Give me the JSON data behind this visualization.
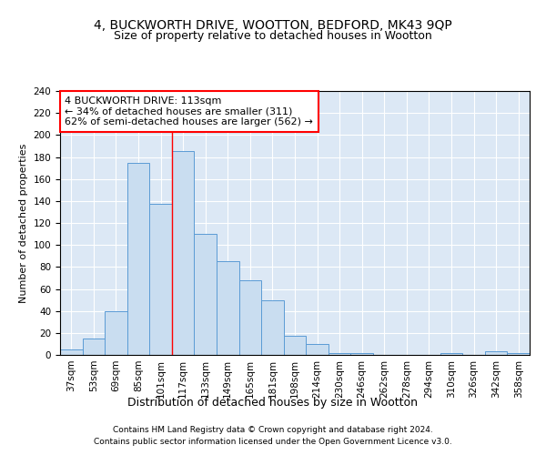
{
  "title1": "4, BUCKWORTH DRIVE, WOOTTON, BEDFORD, MK43 9QP",
  "title2": "Size of property relative to detached houses in Wootton",
  "xlabel": "Distribution of detached houses by size in Wootton",
  "ylabel": "Number of detached properties",
  "categories": [
    "37sqm",
    "53sqm",
    "69sqm",
    "85sqm",
    "101sqm",
    "117sqm",
    "133sqm",
    "149sqm",
    "165sqm",
    "181sqm",
    "198sqm",
    "214sqm",
    "230sqm",
    "246sqm",
    "262sqm",
    "278sqm",
    "294sqm",
    "310sqm",
    "326sqm",
    "342sqm",
    "358sqm"
  ],
  "values": [
    5,
    15,
    40,
    175,
    137,
    185,
    110,
    85,
    68,
    50,
    17,
    10,
    2,
    2,
    0,
    0,
    0,
    2,
    0,
    3,
    2
  ],
  "bar_color": "#c9ddf0",
  "bar_edge_color": "#5b9bd5",
  "annotation_text": "4 BUCKWORTH DRIVE: 113sqm\n← 34% of detached houses are smaller (311)\n62% of semi-detached houses are larger (562) →",
  "annotation_box_color": "white",
  "annotation_box_edge_color": "red",
  "footnote1": "Contains HM Land Registry data © Crown copyright and database right 2024.",
  "footnote2": "Contains public sector information licensed under the Open Government Licence v3.0.",
  "ylim": [
    0,
    240
  ],
  "background_color": "#dce8f5",
  "title1_fontsize": 10,
  "title2_fontsize": 9,
  "xlabel_fontsize": 9,
  "ylabel_fontsize": 8,
  "tick_fontsize": 7.5,
  "annotation_fontsize": 8,
  "footnote_fontsize": 6.5
}
